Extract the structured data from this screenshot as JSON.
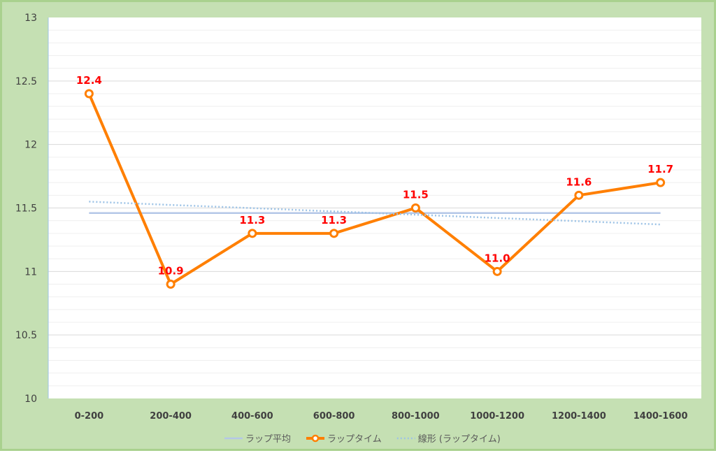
{
  "chart_data": {
    "type": "line",
    "categories": [
      "0-200",
      "200-400",
      "400-600",
      "600-800",
      "800-1000",
      "1000-1200",
      "1200-1400",
      "1400-1600"
    ],
    "series": [
      {
        "name": "ラップ平均",
        "values": [
          11.46,
          11.46,
          11.46,
          11.46,
          11.46,
          11.46,
          11.46,
          11.46
        ],
        "color": "#b4c7e7",
        "style": "solid"
      },
      {
        "name": "ラップタイム",
        "values": [
          12.4,
          10.9,
          11.3,
          11.3,
          11.5,
          11.0,
          11.6,
          11.7
        ],
        "color": "#ff7f00",
        "style": "solid-markers"
      },
      {
        "name": "線形 (ラップタイム)",
        "values": [
          11.55,
          11.524,
          11.499,
          11.473,
          11.447,
          11.421,
          11.396,
          11.37
        ],
        "color": "#9dc3e6",
        "style": "dotted"
      }
    ],
    "data_labels": [
      "12.4",
      "10.9",
      "11.3",
      "11.3",
      "11.5",
      "11.0",
      "11.6",
      "11.7"
    ],
    "yticks": [
      "10",
      "10.5",
      "11",
      "11.5",
      "12",
      "12.5",
      "13"
    ],
    "ylim": [
      10,
      13
    ],
    "title": "",
    "xlabel": "",
    "ylabel": "",
    "grid": true,
    "legend_position": "bottom"
  }
}
